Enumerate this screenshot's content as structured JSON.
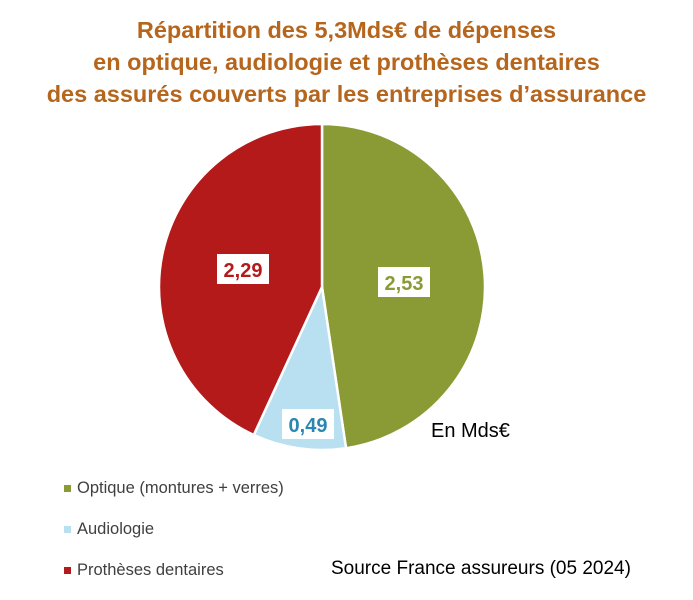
{
  "chart_data": {
    "type": "pie",
    "title": [
      "Répartition des 5,3Mds€ de dépenses",
      "en optique, audiologie et prothèses dentaires",
      "des assurés couverts par les entreprises d’assurance"
    ],
    "unit_label": "En Mds€",
    "source": "Source France assureurs (05 2024)",
    "start_angle_deg": 0,
    "direction": "clockwise",
    "legend_position": "bottom-left",
    "slices": [
      {
        "name": "Optique (montures + verres)",
        "value": 2.53,
        "label": "2,53",
        "color": "#8a9a34",
        "label_color": "#8a9a34"
      },
      {
        "name": "Audiologie",
        "value": 0.49,
        "label": "0,49",
        "color": "#b9e0f0",
        "label_color": "#2a88b0"
      },
      {
        "name": "Prothèses dentaires",
        "value": 2.29,
        "label": "2,29",
        "color": "#b41a1a",
        "label_color": "#b41a1a"
      }
    ]
  }
}
